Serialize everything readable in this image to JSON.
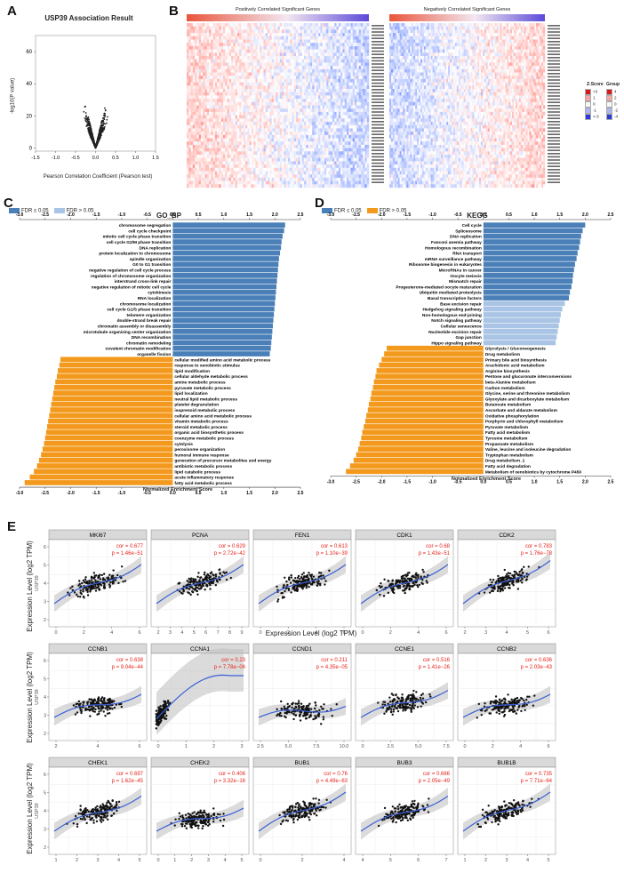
{
  "panel_labels": {
    "a": "A",
    "b": "B",
    "c": "C",
    "d": "D",
    "e": "E"
  },
  "colors": {
    "pos_bar": "#4a7fb8",
    "neg_bar": "#f39a1e",
    "light_bar": "#a9c4e4",
    "heat_red": "#e03a3a",
    "heat_blue": "#3a55d8",
    "fit_line": "#3a5fd8",
    "scatter_dot": "#111111",
    "cor_text": "#e8221b"
  },
  "volcano": {
    "title": "USP39 Association Result",
    "ylabel": "-log10(P value)",
    "xlabel": "Pearson Correlation Coefficient (Pearson test)",
    "yticks": [
      "0",
      "20",
      "40",
      "60"
    ],
    "xticks": [
      "-1.5",
      "-1.0",
      "-0.5",
      "0.0",
      "0.5",
      "1.0",
      "1.5"
    ]
  },
  "heatmap": {
    "pos_title": "Positively Correlated Significant Genes",
    "neg_title": "Negatively Correlated Significant Genes",
    "legend_zscore": "Z-Score",
    "legend_group": "Group",
    "zscore_levels": [
      ">3",
      "1",
      "0",
      "-1",
      "<-3"
    ],
    "group_levels": [
      "4",
      "2",
      "0",
      "-2",
      "-4"
    ]
  },
  "chart_data": [
    {
      "type": "bar",
      "panel": "C",
      "title": "GO_BP",
      "xlabel": "Normalized Enrichment Score",
      "legend": [
        "FDR ≤ 0.05",
        "FDR > 0.05"
      ],
      "xlim": [
        -3.0,
        2.5
      ],
      "xticks": [
        "-3.0",
        "-2.5",
        "-2.0",
        "-1.5",
        "-1.0",
        "-0.5",
        "0.0",
        "0.5",
        "1.0",
        "1.5",
        "2.0",
        "2.5"
      ],
      "categories": [
        "chromosome segregation",
        "cell cycle checkpoint",
        "mitotic cell cycle phase transition",
        "cell cycle G2/M phase transition",
        "DNA replication",
        "protein localization to chromosome",
        "spindle organization",
        "G0 to G1 transition",
        "negative regulation of cell cycle process",
        "regulation of chromosome organization",
        "interstrand cross-link repair",
        "negative regulation of mitotic cell cycle",
        "cytokinesis",
        "RNA localization",
        "chromosome localization",
        "cell cycle G1/S phase transition",
        "telomere organization",
        "double-strand break repair",
        "chromatin assembly or disassembly",
        "microtubule organizing center organization",
        "DNA recombination",
        "chromatin remodeling",
        "covalent chromatin modification",
        "organelle fission",
        "cellular modified amino acid metabolic process",
        "response to xenobiotic stimulus",
        "lipid modification",
        "cellular aldehyde metabolic process",
        "amine metabolic process",
        "pyruvate metabolic process",
        "lipid localization",
        "neutral lipid metabolic process",
        "platelet degranulation",
        "isoprenoid metabolic process",
        "cellular amino acid metabolic process",
        "vitamin metabolic process",
        "steroid metabolic process",
        "organic acid biosynthetic process",
        "coenzyme metabolic process",
        "cytolysis",
        "peroxisome organization",
        "humoral immune response",
        "generation of precursor metabolites and energy",
        "antibiotic metabolic process",
        "lipid catabolic process",
        "acute inflammatory response",
        "fatty acid metabolic process"
      ],
      "values": [
        2.2,
        2.18,
        2.15,
        2.13,
        2.12,
        2.1,
        2.08,
        2.07,
        2.06,
        2.05,
        2.04,
        2.03,
        2.02,
        2.01,
        2.0,
        1.99,
        1.98,
        1.97,
        1.96,
        1.95,
        1.94,
        1.93,
        1.92,
        1.9,
        -2.2,
        -2.22,
        -2.25,
        -2.27,
        -2.3,
        -2.32,
        -2.34,
        -2.36,
        -2.38,
        -2.4,
        -2.42,
        -2.44,
        -2.46,
        -2.48,
        -2.5,
        -2.52,
        -2.55,
        -2.58,
        -2.62,
        -2.66,
        -2.72,
        -2.8,
        -2.9
      ]
    },
    {
      "type": "bar",
      "panel": "D",
      "title": "KEGG",
      "xlabel": "Normalized Enrichment Score",
      "legend": [
        "FDR ≤ 0.05",
        "FDR > 0.05"
      ],
      "xlim": [
        -3.0,
        2.5
      ],
      "xticks": [
        "-3.0",
        "-2.5",
        "-2.0",
        "-1.5",
        "-1.0",
        "-0.5",
        "0.0",
        "0.5",
        "1.0",
        "1.5",
        "2.0",
        "2.5"
      ],
      "categories": [
        "Cell cycle",
        "Spliceosome",
        "DNA replication",
        "Fanconi anemia pathway",
        "Homologous recombination",
        "RNA transport",
        "mRNA surveillance pathway",
        "Ribosome biogenesis in eukaryotes",
        "MicroRNAs in cancer",
        "Oocyte meiosis",
        "Mismatch repair",
        "Progesterone-mediated oocyte maturation",
        "Ubiquitin mediated proteolysis",
        "Basal transcription factors",
        "Base excision repair",
        "Hedgehog signaling pathway",
        "Non-homologous end-joining",
        "Notch signaling pathway",
        "Cellular senescence",
        "Nucleotide excision repair",
        "Gap junction",
        "Hippo signaling pathway",
        "Glycolysis / Gluconeogenesis",
        "Drug metabolism",
        "Primary bile acid biosynthesis",
        "Arachidonic acid metabolism",
        "Arginine biosynthesis",
        "Pentose and glucuronate interconversions",
        "beta-Alanine metabolism",
        "Carbon metabolism",
        "Glycine, serine and threonine metabolism",
        "Glyoxylate and dicarboxylate metabolism",
        "Butanoate metabolism",
        "Ascorbate and aldarate metabolism",
        "Oxidative phosphorylation",
        "Porphyrin and chlorophyll metabolism",
        "Pyruvate metabolism",
        "Fatty acid metabolism",
        "Tyrosine metabolism",
        "Propanoate metabolism",
        "Valine, leucine and isoleucine degradation",
        "Tryptophan metabolism",
        "Drug metabolism_1",
        "Fatty acid degradation",
        "Metabolism of xenobiotics by cytochrome P450"
      ],
      "values": [
        2.0,
        1.95,
        1.92,
        1.9,
        1.88,
        1.85,
        1.83,
        1.8,
        1.78,
        1.76,
        1.75,
        1.73,
        1.7,
        1.68,
        1.6,
        1.55,
        1.52,
        1.5,
        1.48,
        1.46,
        1.44,
        1.42,
        -1.9,
        -1.95,
        -2.0,
        -2.05,
        -2.1,
        -2.12,
        -2.15,
        -2.17,
        -2.2,
        -2.22,
        -2.25,
        -2.27,
        -2.3,
        -2.32,
        -2.35,
        -2.38,
        -2.4,
        -2.43,
        -2.46,
        -2.5,
        -2.55,
        -2.62,
        -2.7
      ],
      "light_start": 14,
      "light_end": 21
    }
  ],
  "scatter": {
    "ylabel": "Expression Level (log2 TPM)",
    "xlabel": "Expression Level (log2 TPM)",
    "yaxis_gene": "USP39",
    "rows": [
      [
        {
          "gene": "MKI67",
          "cor": "cor = 0.677",
          "p": "p = 1.46e−51",
          "xticks": [
            "0",
            "2",
            "4",
            "6"
          ]
        },
        {
          "gene": "PCNA",
          "cor": "cor = 0.629",
          "p": "p = 2.72e−42",
          "xticks": [
            "2",
            "3",
            "4",
            "5",
            "6",
            "7",
            "8",
            "9"
          ]
        },
        {
          "gene": "FEN1",
          "cor": "cor = 0.613",
          "p": "p = 1.10e−39",
          "xticks": [
            "0",
            "2",
            "4",
            "6"
          ]
        },
        {
          "gene": "CDK1",
          "cor": "cor = 0.68",
          "p": "p = 1.43e−51",
          "xticks": [
            "0",
            "2",
            "4",
            "6"
          ]
        },
        {
          "gene": "CDK2",
          "cor": "cor = 0.783",
          "p": "p = 1.76e−78",
          "xticks": [
            "2",
            "3",
            "4",
            "5",
            "6"
          ]
        }
      ],
      [
        {
          "gene": "CCNB1",
          "cor": "cor = 0.638",
          "p": "p = 9.04e−44",
          "xticks": [
            "2",
            "4",
            "6"
          ]
        },
        {
          "gene": "CCNA1",
          "cor": "cor = 0.23",
          "p": "p = 7.78e−06",
          "xticks": [
            "0",
            "1",
            "2",
            "3"
          ]
        },
        {
          "gene": "CCND1",
          "cor": "cor = 0.211",
          "p": "p = 4.35e−05",
          "xticks": [
            "2.5",
            "5.0",
            "7.5",
            "10.0"
          ]
        },
        {
          "gene": "CCNE1",
          "cor": "cor = 0.516",
          "p": "p = 1.41e−26",
          "xticks": [
            "0",
            "2.5",
            "5.0",
            "7.5"
          ]
        },
        {
          "gene": "CCNB2",
          "cor": "cor = 0.636",
          "p": "p = 2.03e−43",
          "xticks": [
            "0",
            "2",
            "4",
            "6"
          ]
        }
      ],
      [
        {
          "gene": "CHEK1",
          "cor": "cor = 0.697",
          "p": "p = 1.62e−45",
          "xticks": [
            "1",
            "2",
            "3",
            "4",
            "5"
          ]
        },
        {
          "gene": "CHEK2",
          "cor": "cor = 0.406",
          "p": "p = 3.32e−16",
          "xticks": [
            "0",
            "1",
            "2",
            "3",
            "4",
            "5"
          ]
        },
        {
          "gene": "BUB1",
          "cor": "cor = 0.76",
          "p": "p = 4.49e−63",
          "xticks": [
            "0",
            "2",
            "4"
          ]
        },
        {
          "gene": "BUB3",
          "cor": "cor = 0.666",
          "p": "p = 2.05e−49",
          "xticks": [
            "4",
            "5",
            "6",
            "7"
          ]
        },
        {
          "gene": "BUB1B",
          "cor": "cor = 0.735",
          "p": "p = 7.71e−64",
          "xticks": [
            "1",
            "2",
            "3",
            "4",
            "5"
          ]
        }
      ]
    ],
    "yticks": [
      "2",
      "3",
      "4",
      "5",
      "6"
    ]
  }
}
